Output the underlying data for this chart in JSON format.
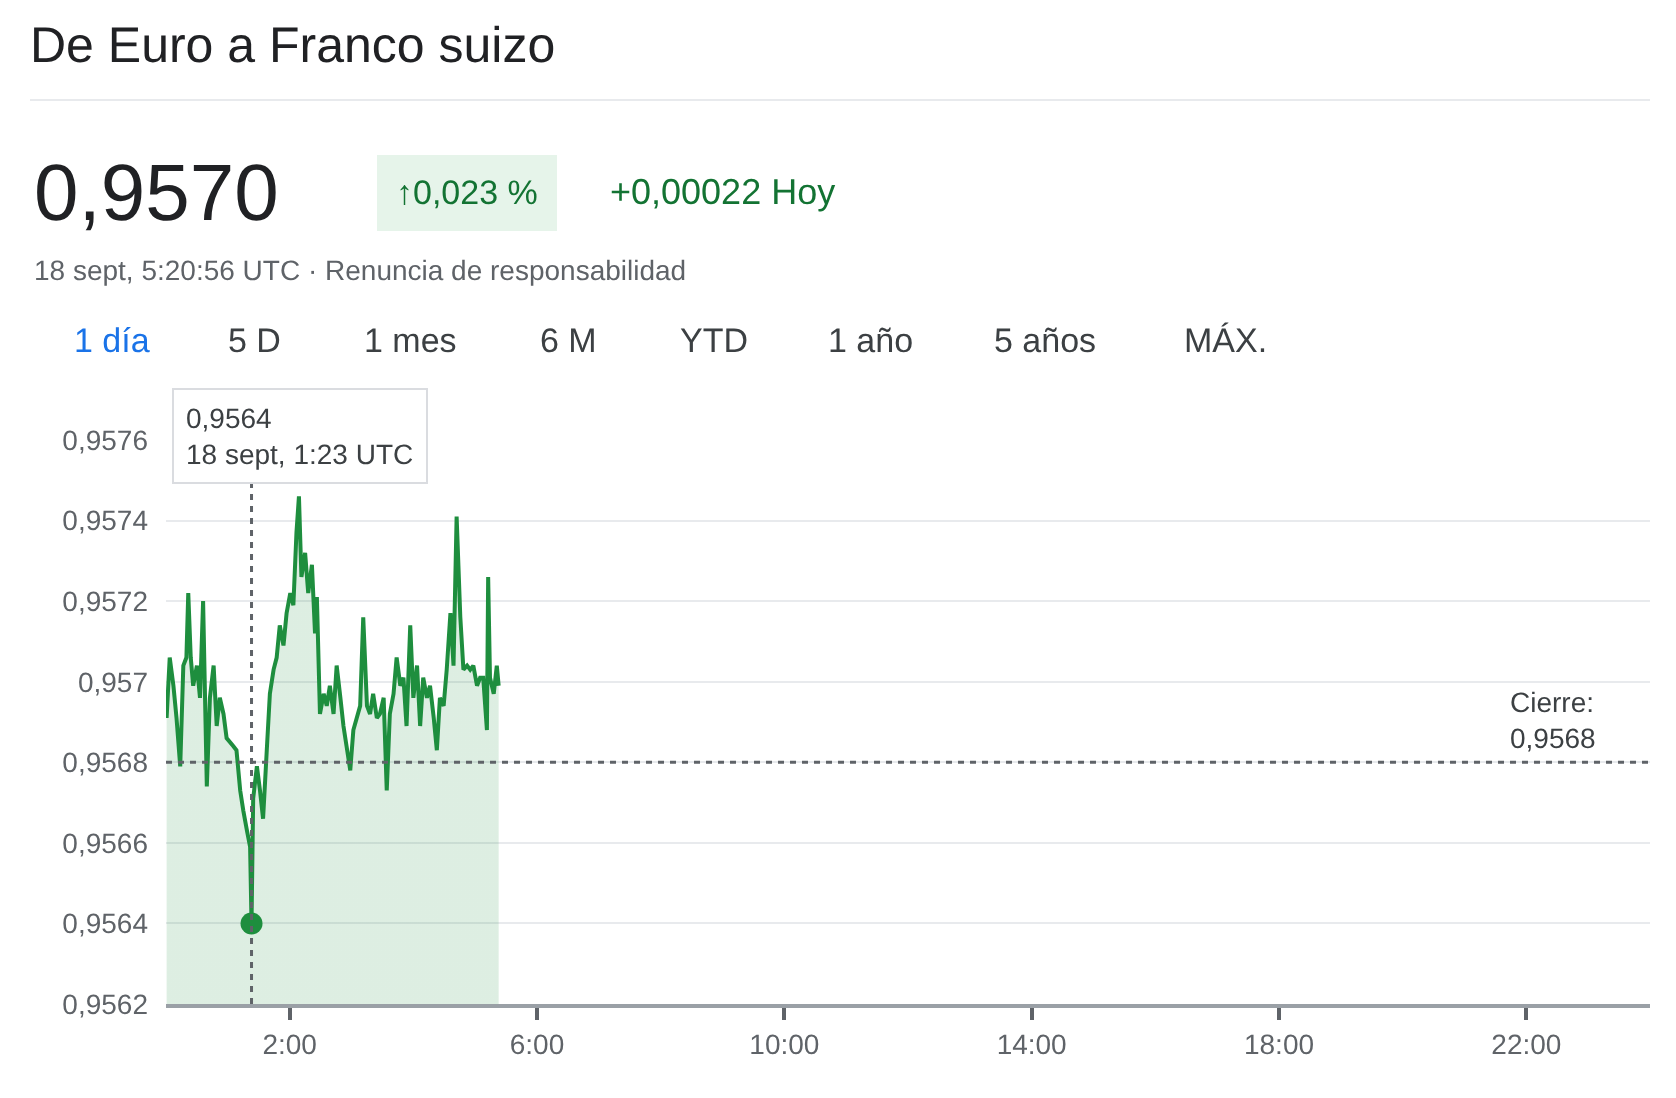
{
  "chart_data": {
    "type": "area",
    "title": "De Euro a Franco suizo",
    "subtitle": "18 sept, 5:20:56 UTC · Renuncia de responsabilidad",
    "annotations": [
      "0,9570",
      "↑0,023 %",
      "+0,00022 Hoy",
      "1 día",
      "5 D",
      "1 mes",
      "6 M",
      "YTD",
      "1 año",
      "5 años",
      "MÁX.",
      "0,9564\n18 sept, 1:23 UTC"
    ],
    "series": [
      {
        "color": "#1e8e3e",
        "x": [
          0.01,
          0.06,
          0.12,
          0.17,
          0.23,
          0.28,
          0.33,
          0.36,
          0.4,
          0.44,
          0.5,
          0.55,
          0.6,
          0.66,
          0.71,
          0.77,
          0.82,
          0.87,
          0.93,
          0.98,
          1.09,
          1.14,
          1.2,
          1.25,
          1.31,
          1.36,
          1.383,
          1.41,
          1.47,
          1.52,
          1.57,
          1.63,
          1.68,
          1.74,
          1.79,
          1.84,
          1.9,
          1.95,
          2.01,
          2.06,
          2.11,
          2.15,
          2.19,
          2.25,
          2.3,
          2.36,
          2.41,
          2.44,
          2.49,
          2.55,
          2.6,
          2.65,
          2.71,
          2.76,
          2.82,
          2.87,
          2.92,
          2.98,
          3.03,
          3.14,
          3.19,
          3.25,
          3.3,
          3.35,
          3.41,
          3.46,
          3.52,
          3.57,
          3.62,
          3.68,
          3.73,
          3.79,
          3.84,
          3.89,
          3.95,
          4.0,
          4.06,
          4.11,
          4.16,
          4.22,
          4.27,
          4.33,
          4.38,
          4.43,
          4.49,
          4.54,
          4.6,
          4.65,
          4.7,
          4.76,
          4.81,
          4.87,
          4.92,
          4.97,
          5.03,
          5.08,
          5.13,
          5.19,
          5.21,
          5.24,
          5.3,
          5.35,
          5.38
        ],
        "values": [
          0.95691,
          0.95706,
          0.95699,
          0.95691,
          0.95679,
          0.95704,
          0.95706,
          0.95722,
          0.95706,
          0.95699,
          0.95704,
          0.95696,
          0.9572,
          0.95674,
          0.95696,
          0.95704,
          0.95689,
          0.95696,
          0.95692,
          0.95686,
          0.95684,
          0.95683,
          0.95673,
          0.95668,
          0.95663,
          0.95659,
          0.9564,
          0.95671,
          0.95679,
          0.95673,
          0.95666,
          0.95683,
          0.95697,
          0.95703,
          0.95706,
          0.95714,
          0.95709,
          0.95717,
          0.95722,
          0.95719,
          0.95737,
          0.95746,
          0.95726,
          0.95732,
          0.95722,
          0.95729,
          0.95712,
          0.95721,
          0.95692,
          0.95697,
          0.95694,
          0.95699,
          0.95692,
          0.95704,
          0.95696,
          0.95689,
          0.95684,
          0.95678,
          0.95688,
          0.95694,
          0.95716,
          0.95694,
          0.95692,
          0.95697,
          0.95691,
          0.95692,
          0.95696,
          0.95673,
          0.95692,
          0.95697,
          0.95706,
          0.95699,
          0.95701,
          0.95689,
          0.95714,
          0.95696,
          0.95704,
          0.95689,
          0.95701,
          0.95696,
          0.95699,
          0.95691,
          0.95683,
          0.95696,
          0.95694,
          0.95703,
          0.95717,
          0.95704,
          0.95741,
          0.95716,
          0.95703,
          0.95704,
          0.95703,
          0.95704,
          0.95699,
          0.95701,
          0.95701,
          0.95688,
          0.95726,
          0.95701,
          0.95697,
          0.95704,
          0.95699
        ]
      },
      {
        "type": "scatter",
        "color": "#1e8e3e",
        "marker": "circle",
        "x": [
          1.383
        ],
        "values": [
          0.9564
        ]
      }
    ],
    "ref_lines": [
      {
        "axis": "y",
        "value": 0.9568,
        "label": "Cierre:\n0,9568",
        "color": "#5f6368",
        "line_style": "dotted"
      },
      {
        "axis": "x",
        "value": 1.383,
        "label": null,
        "color": "#5f6368",
        "line_style": "dotted"
      }
    ],
    "xlim": [
      0,
      24
    ],
    "xticks": [
      {
        "value": 2,
        "label": "2:00"
      },
      {
        "value": 6,
        "label": "6:00"
      },
      {
        "value": 10,
        "label": "10:00"
      },
      {
        "value": 14,
        "label": "14:00"
      },
      {
        "value": 18,
        "label": "18:00"
      },
      {
        "value": 22,
        "label": "22:00"
      }
    ],
    "ylim": [
      0.9562,
      0.9576
    ],
    "yticks": [
      {
        "value": 0.9562,
        "label": "0,9562"
      },
      {
        "value": 0.9564,
        "label": "0,9564"
      },
      {
        "value": 0.9566,
        "label": "0,9566"
      },
      {
        "value": 0.9568,
        "label": "0,9568"
      },
      {
        "value": 0.957,
        "label": "0,957"
      },
      {
        "value": 0.9572,
        "label": "0,9572"
      },
      {
        "value": 0.9574,
        "label": "0,9574"
      },
      {
        "value": 0.9576,
        "label": "0,9576"
      }
    ],
    "grid": "y"
  }
}
